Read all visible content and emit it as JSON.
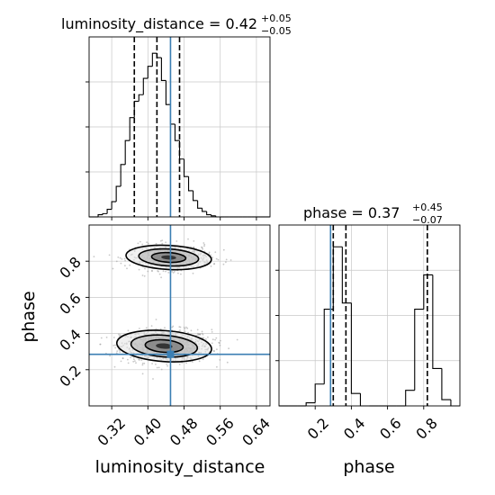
{
  "colors": {
    "truth": "#3b7fb3",
    "hist": "#000000",
    "grid": "#c8c8c8",
    "samples": "#9a9a9a"
  },
  "chart_data": {
    "type": "corner",
    "parameters": [
      "luminosity_distance",
      "phase"
    ],
    "truths": {
      "luminosity_distance": 0.45,
      "phase": 0.285
    },
    "grid": true,
    "panels": [
      {
        "id": "hist-luminosity-distance",
        "type": "histogram",
        "parameter": "luminosity_distance",
        "title_main": "luminosity_distance = 0.42",
        "title_plus": "+0.05",
        "title_minus": "−0.05",
        "xlim": [
          0.27,
          0.67
        ],
        "xticks": [
          0.32,
          0.4,
          0.48,
          0.56,
          0.64
        ],
        "xtick_labels": [
          "0.32",
          "0.40",
          "0.48",
          "0.56",
          "0.64"
        ],
        "bin_edges": [
          0.27,
          0.28,
          0.29,
          0.3,
          0.31,
          0.32,
          0.33,
          0.34,
          0.35,
          0.36,
          0.37,
          0.38,
          0.39,
          0.4,
          0.41,
          0.42,
          0.43,
          0.44,
          0.45,
          0.46,
          0.47,
          0.48,
          0.49,
          0.5,
          0.51,
          0.52,
          0.53,
          0.54,
          0.55,
          0.56,
          0.57,
          0.58,
          0.59,
          0.6,
          0.61,
          0.62,
          0.63,
          0.64,
          0.65,
          0.66,
          0.67
        ],
        "counts": [
          0,
          0,
          2,
          3,
          7,
          14,
          28,
          48,
          70,
          91,
          106,
          112,
          127,
          138,
          150,
          146,
          125,
          103,
          85,
          70,
          53,
          37,
          24,
          15,
          8,
          5,
          2,
          1,
          0,
          0,
          0,
          0,
          0,
          0,
          0,
          0,
          0,
          0,
          0,
          0
        ],
        "quantiles": [
          0.37,
          0.42,
          0.47
        ],
        "ylim": [
          0,
          165
        ]
      },
      {
        "id": "scatter-lum-phase",
        "type": "2d-density",
        "x_parameter": "luminosity_distance",
        "y_parameter": "phase",
        "xlim": [
          0.27,
          0.67
        ],
        "ylim": [
          0.0,
          1.0
        ],
        "xticks": [
          0.32,
          0.4,
          0.48,
          0.56,
          0.64
        ],
        "xtick_labels": [
          "0.32",
          "0.40",
          "0.48",
          "0.56",
          "0.64"
        ],
        "yticks": [
          0.2,
          0.4,
          0.6,
          0.8
        ],
        "ytick_labels": [
          "0.2",
          "0.4",
          "0.6",
          "0.8"
        ],
        "xlabel": "luminosity_distance",
        "ylabel": "phase",
        "clusters": [
          {
            "center": [
              0.44,
              0.33
            ],
            "spread": [
              0.05,
              0.045
            ],
            "weight": 0.65
          },
          {
            "center": [
              0.45,
              0.82
            ],
            "spread": [
              0.045,
              0.035
            ],
            "weight": 0.35
          }
        ]
      },
      {
        "id": "hist-phase",
        "type": "histogram",
        "parameter": "phase",
        "title_main": "phase = 0.37",
        "title_plus": "+0.45",
        "title_minus": "−0.07",
        "xlim": [
          0.0,
          1.0
        ],
        "xticks": [
          0.2,
          0.4,
          0.6,
          0.8
        ],
        "xtick_labels": [
          "0.2",
          "0.4",
          "0.6",
          "0.8"
        ],
        "xlabel": "phase",
        "bin_edges": [
          0.0,
          0.05,
          0.1,
          0.15,
          0.2,
          0.25,
          0.3,
          0.35,
          0.4,
          0.45,
          0.5,
          0.55,
          0.6,
          0.65,
          0.7,
          0.75,
          0.8,
          0.85,
          0.9,
          0.95,
          1.0
        ],
        "counts": [
          0,
          0,
          0,
          1,
          7,
          31,
          51,
          33,
          4,
          0,
          0,
          0,
          0,
          0,
          5,
          31,
          42,
          12,
          2,
          0
        ],
        "quantiles": [
          0.3,
          0.37,
          0.82
        ],
        "ylim": [
          0,
          58
        ]
      }
    ]
  }
}
